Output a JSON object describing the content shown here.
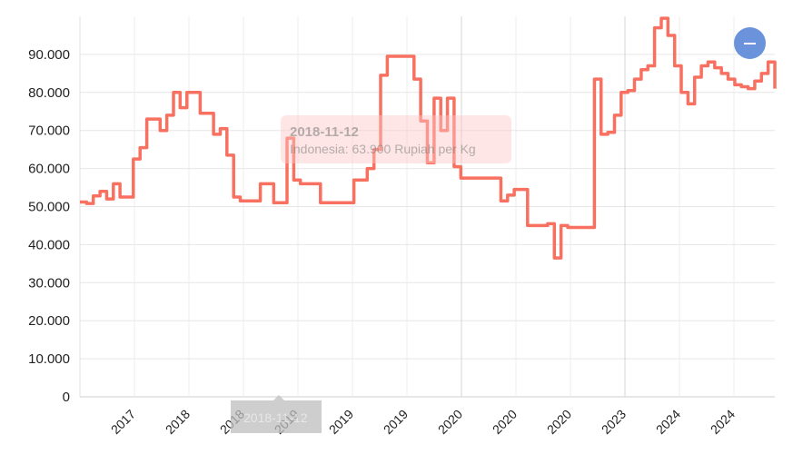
{
  "chart_data": {
    "type": "line",
    "title": "",
    "xlabel": "",
    "ylabel": "",
    "ylim": [
      0,
      100000
    ],
    "yticks": [
      0,
      10000,
      20000,
      30000,
      40000,
      50000,
      60000,
      70000,
      80000,
      90000
    ],
    "ytick_labels": [
      "0",
      "10.000",
      "20.000",
      "30.000",
      "40.000",
      "50.000",
      "60.000",
      "70.000",
      "80.000",
      "90.000"
    ],
    "xtick_labels": [
      "2017",
      "2018",
      "2018",
      "2019",
      "2019",
      "2019",
      "2020",
      "2020",
      "2020",
      "2023",
      "2024",
      "2024"
    ],
    "grid": true,
    "series": [
      {
        "name": "Indonesia",
        "unit": "Rupiah per Kg",
        "color": "#f87060",
        "x": [
          "2016-02",
          "2016-03",
          "2016-04",
          "2016-05",
          "2016-06",
          "2016-07",
          "2016-08",
          "2016-09",
          "2016-10",
          "2016-11",
          "2016-12",
          "2017-01",
          "2017-02",
          "2017-03",
          "2017-04",
          "2017-05",
          "2017-06",
          "2017-07",
          "2017-08",
          "2017-09",
          "2017-10",
          "2017-11",
          "2017-12",
          "2018-01",
          "2018-02",
          "2018-03",
          "2018-04",
          "2018-05",
          "2018-06",
          "2018-07",
          "2018-08",
          "2018-09",
          "2018-10",
          "2018-11",
          "2018-12",
          "2019-01",
          "2019-02",
          "2019-03",
          "2019-04",
          "2019-05",
          "2019-06",
          "2019-07",
          "2019-08",
          "2019-09",
          "2019-10",
          "2019-11",
          "2019-12",
          "2020-01",
          "2020-02",
          "2020-03",
          "2020-04",
          "2020-05",
          "2020-06",
          "2020-07",
          "2020-08",
          "2020-09",
          "2020-10",
          "2020-11",
          "2020-12",
          "2021-01",
          "2021-02",
          "2021-03",
          "2021-04",
          "2021-05",
          "2021-06",
          "2021-07",
          "2021-08",
          "2021-09",
          "2021-10",
          "2021-11",
          "2021-12",
          "2022-01",
          "2022-02",
          "2022-03",
          "2022-04",
          "2022-05",
          "2022-06",
          "2022-07",
          "2022-08",
          "2022-09",
          "2022-10",
          "2022-11",
          "2022-12",
          "2023-01",
          "2023-02",
          "2023-03",
          "2023-04",
          "2023-05",
          "2023-06",
          "2023-07",
          "2023-08",
          "2023-09",
          "2023-10",
          "2023-11",
          "2023-12",
          "2024-01",
          "2024-02",
          "2024-03",
          "2024-04",
          "2024-05",
          "2024-06",
          "2024-07",
          "2024-08",
          "2024-09",
          "2024-10"
        ],
        "values": [
          51200,
          50800,
          52800,
          54000,
          52000,
          56000,
          52500,
          52500,
          62500,
          65500,
          73000,
          73000,
          70000,
          74000,
          80000,
          76000,
          80000,
          80000,
          74500,
          74500,
          69000,
          70500,
          63500,
          52500,
          51500,
          51500,
          51500,
          56000,
          56000,
          51000,
          51000,
          68000,
          57000,
          56000,
          56000,
          56000,
          51000,
          51000,
          51000,
          51000,
          51000,
          57000,
          57000,
          60000,
          65000,
          84500,
          89500,
          89500,
          89500,
          89500,
          83500,
          72500,
          61500,
          78500,
          70000,
          78500,
          60500,
          57500,
          57500,
          57500,
          57500,
          57500,
          57500,
          51500,
          53000,
          54500,
          54500,
          45000,
          45000,
          45000,
          45500,
          36500,
          45000,
          44500,
          44500,
          44500,
          44500,
          83500,
          69000,
          69500,
          74000,
          80000,
          80500,
          83500,
          86000,
          87000,
          97000,
          99500,
          95000,
          87000,
          80000,
          77000,
          84000,
          87000,
          88000,
          86500,
          85000,
          83500,
          82000,
          81500,
          81000,
          83000,
          85000,
          88000,
          81000
        ]
      }
    ],
    "tooltip": {
      "date": "2018-11-12",
      "label": "Indonesia: 63.900 Rupiah per Kg"
    },
    "hover_x_label": "2018-11-12",
    "toggle_icon": "minus-icon"
  }
}
